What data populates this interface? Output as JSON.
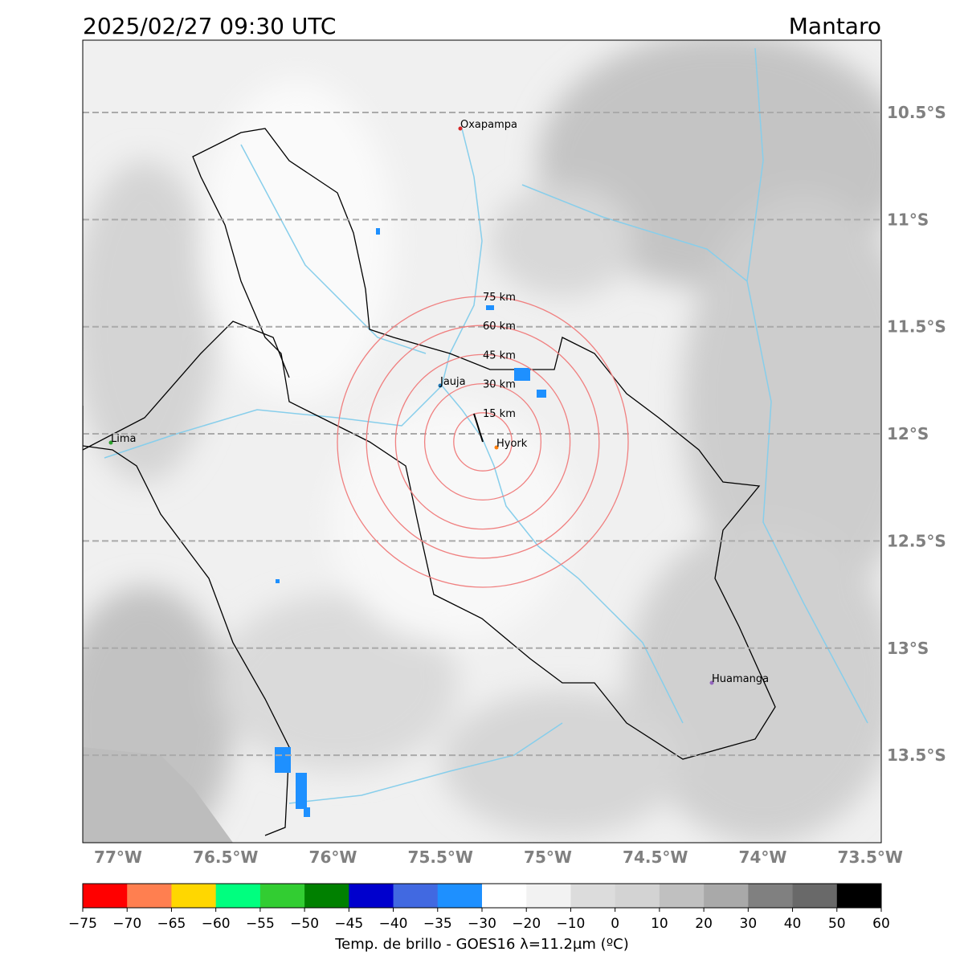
{
  "header": {
    "datetime": "2025/02/27 09:30 UTC",
    "region": "Mantaro"
  },
  "map": {
    "lat_labels": [
      {
        "value": -10.5,
        "label": "10.5°S"
      },
      {
        "value": -11,
        "label": "11°S"
      },
      {
        "value": -11.5,
        "label": "11.5°S"
      },
      {
        "value": -12,
        "label": "12°S"
      },
      {
        "value": -12.5,
        "label": "12.5°S"
      },
      {
        "value": -13,
        "label": "13°S"
      },
      {
        "value": -13.5,
        "label": "13.5°S"
      }
    ],
    "lon_labels": [
      {
        "value": -77,
        "label": "77°W"
      },
      {
        "value": -76.5,
        "label": "76.5°W"
      },
      {
        "value": -76,
        "label": "76°W"
      },
      {
        "value": -75.5,
        "label": "75.5°W"
      },
      {
        "value": -75,
        "label": "75°W"
      },
      {
        "value": -74.5,
        "label": "74.5°W"
      },
      {
        "value": -74,
        "label": "74°W"
      },
      {
        "value": -73.5,
        "label": "73.5°W"
      }
    ],
    "cities": [
      {
        "name": "Oxapampa",
        "color": "#d62728"
      },
      {
        "name": "Jauja",
        "color": "#1f77b4"
      },
      {
        "name": "Lima",
        "color": "#2ca02c"
      },
      {
        "name": "Hyork",
        "color": "#ff7f0e"
      },
      {
        "name": "Huamanga",
        "color": "#9467bd"
      }
    ],
    "rings": [
      "15 km",
      "30 km",
      "45 km",
      "60 km",
      "75 km"
    ]
  },
  "colorbar": {
    "label": "Temp. de brillo - GOES16 λ=11.2μm (ºC)",
    "ticks": [
      {
        "value": -75,
        "label": "−75"
      },
      {
        "value": -70,
        "label": "−70"
      },
      {
        "value": -65,
        "label": "−65"
      },
      {
        "value": -60,
        "label": "−60"
      },
      {
        "value": -55,
        "label": "−55"
      },
      {
        "value": -50,
        "label": "−50"
      },
      {
        "value": -45,
        "label": "−45"
      },
      {
        "value": -40,
        "label": "−40"
      },
      {
        "value": -35,
        "label": "−35"
      },
      {
        "value": -30,
        "label": "−30"
      },
      {
        "value": -20,
        "label": "−20"
      },
      {
        "value": -10,
        "label": "−10"
      },
      0,
      10,
      20,
      30,
      40,
      50,
      60
    ],
    "colors": [
      "#ff0000",
      "#ff7f50",
      "#ffd700",
      "#00ff7f",
      "#32cd32",
      "#008000",
      "#0000cd",
      "#4169e1",
      "#1e90ff",
      "#ffffff",
      "#f2f2f2",
      "#dcdcdc",
      "#d3d3d3",
      "#c0c0c0",
      "#a9a9a9",
      "#808080",
      "#696969",
      "#000000"
    ]
  }
}
